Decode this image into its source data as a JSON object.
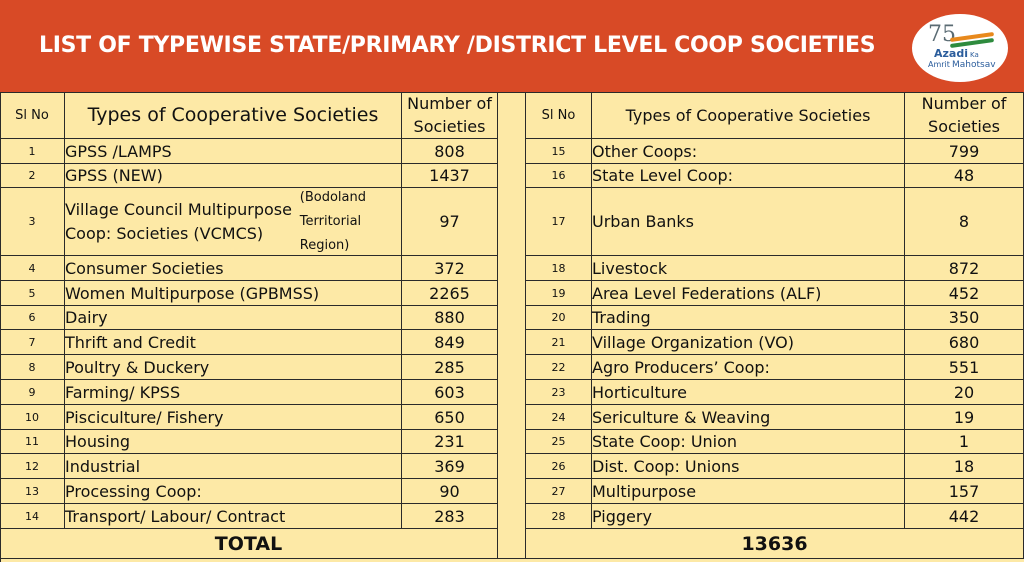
{
  "title": "LIST OF TYPEWISE STATE/PRIMARY /DISTRICT LEVEL COOP SOCIETIES",
  "logo": {
    "number": "75",
    "line1": "Azadi",
    "line2": "Ka",
    "line3": "Amrit",
    "line4": "Mahotsav"
  },
  "headers": {
    "sl_no": "Sl  No",
    "type": "Types of Cooperative Societies",
    "number": "Number of Societies"
  },
  "left_rows": [
    {
      "sl": "1",
      "type": "GPSS /LAMPS",
      "number": "808"
    },
    {
      "sl": "2",
      "type": "GPSS (NEW)",
      "number": "1437"
    },
    {
      "sl": "3",
      "type": "Village Council Multipurpose Coop: Societies (VCMCS)",
      "type_note": "(Bodoland Territorial Region)",
      "number": "97"
    },
    {
      "sl": "4",
      "type": "Consumer Societies",
      "number": "372"
    },
    {
      "sl": "5",
      "type": "Women Multipurpose (GPBMSS)",
      "number": "2265"
    },
    {
      "sl": "6",
      "type": "Dairy",
      "number": "880"
    },
    {
      "sl": "7",
      "type": "Thrift and Credit",
      "number": "849"
    },
    {
      "sl": "8",
      "type": "Poultry & Duckery",
      "number": "285"
    },
    {
      "sl": "9",
      "type": "Farming/ KPSS",
      "number": "603"
    },
    {
      "sl": "10",
      "type": "Pisciculture/ Fishery",
      "number": "650"
    },
    {
      "sl": "11",
      "type": "Housing",
      "number": "231"
    },
    {
      "sl": "12",
      "type": "Industrial",
      "number": "369"
    },
    {
      "sl": "13",
      "type": "Processing Coop:",
      "number": "90"
    },
    {
      "sl": "14",
      "type": "Transport/ Labour/ Contract",
      "number": "283"
    }
  ],
  "right_rows": [
    {
      "sl": "15",
      "type": "Other Coops:",
      "number": "799"
    },
    {
      "sl": "16",
      "type": "State Level Coop:",
      "number": "48"
    },
    {
      "sl": "17",
      "type": "Urban Banks",
      "number": "8"
    },
    {
      "sl": "18",
      "type": "Livestock",
      "number": "872"
    },
    {
      "sl": "19",
      "type": "Area Level Federations (ALF)",
      "number": "452"
    },
    {
      "sl": "20",
      "type": "Trading",
      "number": "350"
    },
    {
      "sl": "21",
      "type": "Village Organization (VO)",
      "number": "680"
    },
    {
      "sl": "22",
      "type": "Agro Producers’ Coop:",
      "number": "551"
    },
    {
      "sl": "23",
      "type": "Horticulture",
      "number": "20"
    },
    {
      "sl": "24",
      "type": "Sericulture & Weaving",
      "number": "19"
    },
    {
      "sl": "25",
      "type": "State Coop: Union",
      "number": "1"
    },
    {
      "sl": "26",
      "type": "Dist. Coop: Unions",
      "number": "18"
    },
    {
      "sl": "27",
      "type": "Multipurpose",
      "number": "157"
    },
    {
      "sl": "28",
      "type": "Piggery",
      "number": "442"
    }
  ],
  "total": {
    "label": "TOTAL",
    "value": "13636"
  },
  "colors": {
    "header_bg": "#d84a26",
    "table_bg": "#fde9a6",
    "border": "#2a2a2a"
  }
}
